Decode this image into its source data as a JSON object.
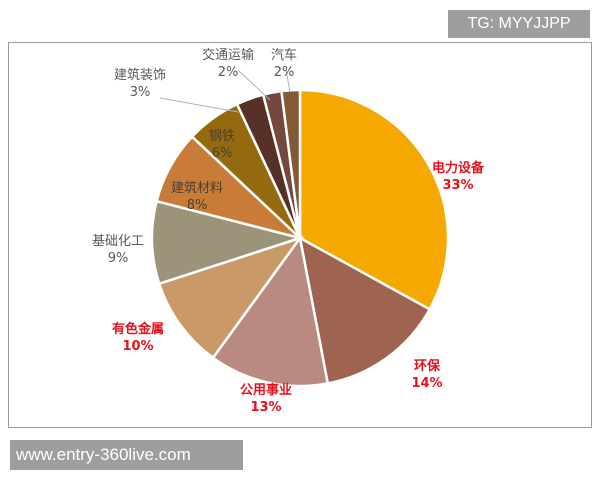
{
  "watermark_top": "TG: MYYJJPP",
  "watermark_bottom": "www.entry-360live.com",
  "chart_data": {
    "type": "pie",
    "start": "top",
    "direction": "clockwise",
    "slices": [
      {
        "label": "电力设备",
        "value": 33,
        "pct": "33%",
        "color": "#F5A900",
        "highlight": true
      },
      {
        "label": "环保",
        "value": 14,
        "pct": "14%",
        "color": "#9E6450",
        "highlight": true
      },
      {
        "label": "公用事业",
        "value": 13,
        "pct": "13%",
        "color": "#B88A80",
        "highlight": true
      },
      {
        "label": "有色金属",
        "value": 10,
        "pct": "10%",
        "color": "#C99A68",
        "highlight": true
      },
      {
        "label": "基础化工",
        "value": 9,
        "pct": "9%",
        "color": "#9C9478",
        "highlight": false
      },
      {
        "label": "建筑材料",
        "value": 8,
        "pct": "8%",
        "color": "#C87C38",
        "highlight": false
      },
      {
        "label": "钢铁",
        "value": 6,
        "pct": "6%",
        "color": "#956A0E",
        "highlight": false
      },
      {
        "label": "建筑装饰",
        "value": 3,
        "pct": "3%",
        "color": "#573027",
        "highlight": false
      },
      {
        "label": "交通运输",
        "value": 2,
        "pct": "2%",
        "color": "#74473F",
        "highlight": false
      },
      {
        "label": "汽车",
        "value": 2,
        "pct": "2%",
        "color": "#825B35",
        "highlight": false
      }
    ]
  }
}
